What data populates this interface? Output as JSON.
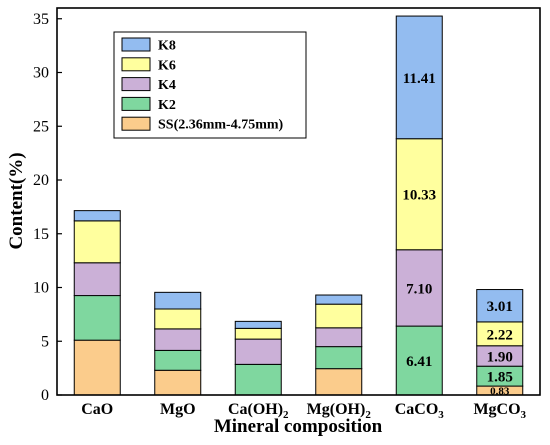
{
  "chart_data": {
    "type": "stacked-bar",
    "xlabel": "Mineral composition",
    "ylabel": "Content(%)",
    "ylim": [
      0,
      36
    ],
    "yticks": [
      "0",
      "5",
      "10",
      "15",
      "20",
      "25",
      "30",
      "35"
    ],
    "categories": [
      {
        "base": "CaO",
        "sub": ""
      },
      {
        "base": "MgO",
        "sub": ""
      },
      {
        "base": "Ca(OH)",
        "sub": "2"
      },
      {
        "base": "Mg(OH)",
        "sub": "2"
      },
      {
        "base": "CaCO",
        "sub": "3"
      },
      {
        "base": "MgCO",
        "sub": "3"
      }
    ],
    "legend_position": "upper-left",
    "series": [
      {
        "name": "SS(2.36mm-4.75mm)",
        "color": "#fbcc8c",
        "values": [
          5.1,
          2.3,
          0.0,
          2.45,
          0.0,
          0.83
        ]
      },
      {
        "name": "K2",
        "color": "#7fd79f",
        "values": [
          4.15,
          1.85,
          2.85,
          2.05,
          6.41,
          1.85
        ]
      },
      {
        "name": "K4",
        "color": "#cbb0d7",
        "values": [
          3.05,
          2.0,
          2.35,
          1.75,
          7.1,
          1.9
        ]
      },
      {
        "name": "K6",
        "color": "#ffff9e",
        "values": [
          3.9,
          1.85,
          1.0,
          2.2,
          10.33,
          2.22
        ]
      },
      {
        "name": "K8",
        "color": "#93bcf0",
        "values": [
          0.95,
          1.55,
          0.65,
          0.85,
          11.41,
          3.01
        ]
      }
    ],
    "data_labels": [
      {
        "category": 4,
        "series": 1,
        "text": "6.41"
      },
      {
        "category": 4,
        "series": 2,
        "text": "7.10"
      },
      {
        "category": 4,
        "series": 3,
        "text": "10.33"
      },
      {
        "category": 4,
        "series": 4,
        "text": "11.41"
      },
      {
        "category": 5,
        "series": 0,
        "text": "0.83"
      },
      {
        "category": 5,
        "series": 1,
        "text": "1.85"
      },
      {
        "category": 5,
        "series": 2,
        "text": "1.90"
      },
      {
        "category": 5,
        "series": 3,
        "text": "2.22"
      },
      {
        "category": 5,
        "series": 4,
        "text": "3.01"
      }
    ]
  }
}
